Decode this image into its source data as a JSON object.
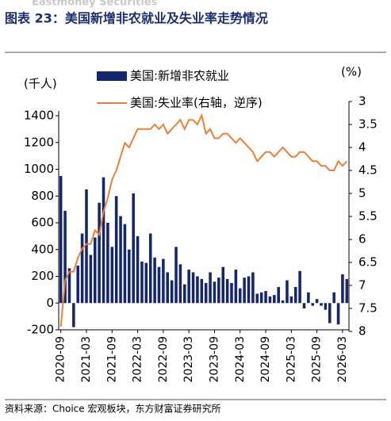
{
  "header": "Eastmoney Securities",
  "chart_data": {
    "type": "bar-line",
    "title": "图表 23：美国新增非农就业及失业率走势情况",
    "y_label": "(千人)",
    "y2_label": "(%)",
    "source": "资料来源：Choice 宏观板块，东方财富证券研究所",
    "categories": [
      "2020-09",
      null,
      null,
      null,
      null,
      null,
      "2021-03",
      null,
      null,
      null,
      null,
      null,
      "2021-09",
      null,
      null,
      null,
      null,
      null,
      "2022-03",
      null,
      null,
      null,
      null,
      null,
      "2022-09",
      null,
      null,
      null,
      null,
      null,
      "2023-03",
      null,
      null,
      null,
      null,
      null,
      "2023-09",
      null,
      null,
      null,
      null,
      null,
      "2024-03",
      null,
      null,
      null,
      null,
      null,
      "2024-09",
      null,
      null,
      null,
      null,
      null,
      "2025-03",
      null,
      null,
      null,
      null,
      null,
      "2025-09",
      null,
      null,
      null,
      null,
      null,
      "2026-03",
      null
    ],
    "series": [
      {
        "name": "美国:新增非农就业",
        "color": "#15266b",
        "kind": "bar",
        "values": [
          950,
          690,
          260,
          -180,
          280,
          520,
          850,
          360,
          490,
          750,
          940,
          600,
          420,
          800,
          650,
          590,
          400,
          820,
          500,
          310,
          300,
          520,
          340,
          270,
          330,
          230,
          170,
          420,
          290,
          140,
          250,
          230,
          200,
          180,
          150,
          230,
          160,
          190,
          270,
          180,
          150,
          250,
          110,
          190,
          200,
          230,
          70,
          80,
          90,
          50,
          60,
          120,
          20,
          170,
          50,
          120,
          240,
          -40,
          80,
          -20,
          30,
          -20,
          -50,
          -150,
          80,
          -160,
          215,
          180
        ]
      },
      {
        "name": "美国:失业率(右轴，逆序)",
        "color": "#e8803a",
        "kind": "line",
        "axis": "y2",
        "values": [
          7.9,
          6.9,
          6.7,
          6.7,
          6.4,
          6.2,
          6.1,
          6.1,
          5.8,
          5.9,
          5.4,
          5.1,
          4.7,
          4.5,
          4.2,
          3.9,
          4.0,
          3.8,
          3.6,
          3.6,
          3.6,
          3.6,
          3.5,
          3.6,
          3.5,
          3.7,
          3.6,
          3.5,
          3.4,
          3.6,
          3.4,
          3.4,
          3.5,
          3.3,
          3.7,
          3.6,
          3.8,
          3.8,
          3.7,
          3.7,
          3.8,
          3.9,
          3.8,
          3.9,
          4.0,
          4.1,
          4.3,
          4.2,
          4.1,
          4.1,
          4.2,
          4.1,
          4.0,
          4.1,
          4.2,
          4.2,
          4.1,
          4.1,
          4.2,
          4.3,
          4.3,
          4.4,
          4.4,
          4.5,
          4.5,
          4.3,
          4.4,
          4.3
        ]
      }
    ],
    "ylim": [
      -200,
      1400
    ],
    "yticks": [
      -200,
      0,
      200,
      400,
      600,
      800,
      1000,
      1200,
      1400
    ],
    "y2lim": [
      3,
      8
    ],
    "y2ticks": [
      3,
      3.5,
      4,
      4.5,
      5,
      5.5,
      6,
      6.5,
      7,
      7.5,
      8
    ],
    "y2_inverted": true
  }
}
